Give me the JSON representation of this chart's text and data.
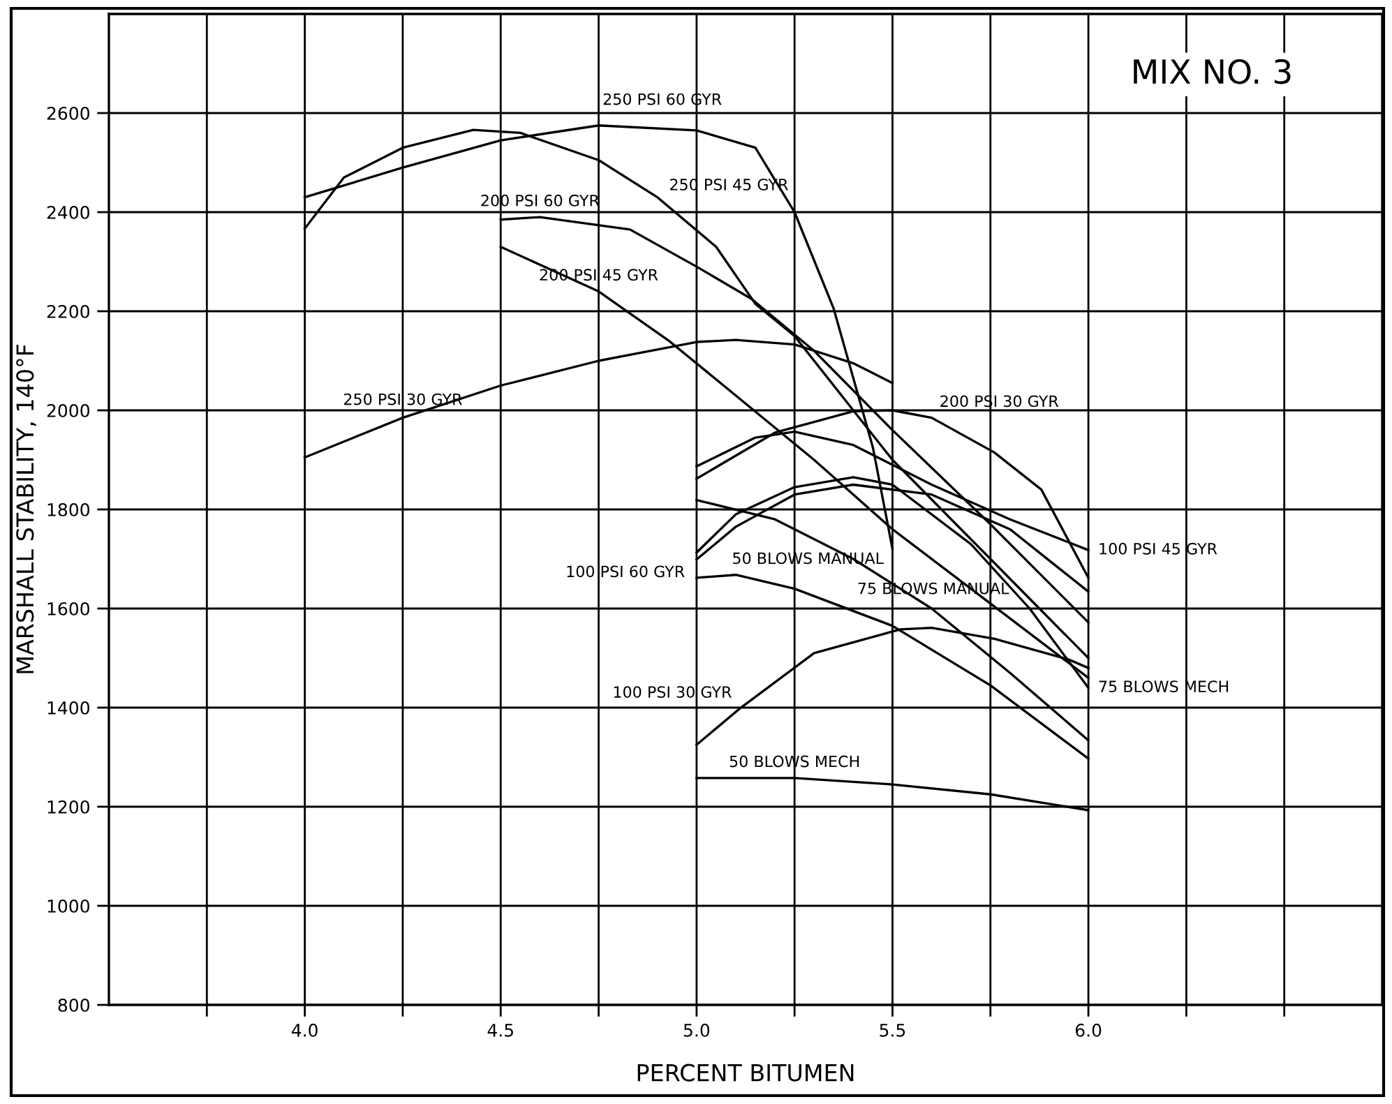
{
  "chart_data": {
    "type": "line",
    "title": "MIX NO. 3",
    "xlabel": "PERCENT BITUMEN",
    "ylabel": "MARSHALL STABILITY, 140°F",
    "xlim": [
      3.5,
      6.75
    ],
    "ylim": [
      800,
      2800
    ],
    "xticks": [
      {
        "value": 3.75,
        "label": null
      },
      {
        "value": 4.0,
        "label": "4.0"
      },
      {
        "value": 4.25,
        "label": null
      },
      {
        "value": 4.5,
        "label": "4.5"
      },
      {
        "value": 4.75,
        "label": null
      },
      {
        "value": 5.0,
        "label": "5.0"
      },
      {
        "value": 5.25,
        "label": null
      },
      {
        "value": 5.5,
        "label": "5.5"
      },
      {
        "value": 5.75,
        "label": null
      },
      {
        "value": 6.0,
        "label": "6.0"
      },
      {
        "value": 6.25,
        "label": null
      },
      {
        "value": 6.5,
        "label": null
      }
    ],
    "yticks": [
      800,
      1000,
      1200,
      1400,
      1600,
      1800,
      2000,
      2200,
      2400,
      2600
    ],
    "grid": true,
    "marker": "none",
    "line_style": "solid",
    "series": [
      {
        "color": "#000000",
        "x": [
          4.0,
          4.25,
          4.5,
          4.75,
          5.0,
          5.15,
          5.25,
          5.35,
          5.45,
          5.5
        ],
        "values": [
          2430,
          2490,
          2545,
          2575,
          2565,
          2530,
          2400,
          2205,
          1925,
          1720
        ]
      },
      {
        "color": "#000000",
        "x": [
          4.0,
          4.1,
          4.25,
          4.43,
          4.55,
          4.75,
          4.9,
          5.05,
          5.15,
          5.25,
          5.5,
          5.75,
          6.0
        ],
        "values": [
          2367,
          2470,
          2530,
          2566,
          2560,
          2505,
          2430,
          2330,
          2215,
          2150,
          1900,
          1700,
          1500
        ]
      },
      {
        "color": "#000000",
        "x": [
          4.5,
          4.6,
          4.83,
          5.0,
          5.14,
          5.3,
          5.5,
          5.75,
          6.0
        ],
        "values": [
          2385,
          2390,
          2365,
          2290,
          2225,
          2120,
          1960,
          1770,
          1572
        ]
      },
      {
        "color": "#000000",
        "x": [
          4.5,
          4.75,
          4.93,
          5.1,
          5.3,
          5.5,
          5.75,
          6.0
        ],
        "values": [
          2330,
          2240,
          2140,
          2030,
          1900,
          1760,
          1610,
          1460
        ]
      },
      {
        "color": "#000000",
        "x": [
          4.0,
          4.25,
          4.5,
          4.75,
          5.0,
          5.1,
          5.25,
          5.4,
          5.5
        ],
        "values": [
          1905,
          1985,
          2050,
          2100,
          2138,
          2142,
          2133,
          2095,
          2055
        ]
      },
      {
        "color": "#000000",
        "x": [
          5.0,
          5.2,
          5.4,
          5.5,
          5.6,
          5.76,
          5.88,
          6.0
        ],
        "values": [
          1862,
          1955,
          1998,
          2000,
          1985,
          1915,
          1840,
          1662
        ]
      },
      {
        "color": "#000000",
        "x": [
          5.0,
          5.15,
          5.25,
          5.4,
          5.6,
          5.8,
          6.0
        ],
        "values": [
          1887,
          1945,
          1957,
          1930,
          1850,
          1780,
          1718
        ]
      },
      {
        "color": "#000000",
        "x": [
          5.0,
          5.1,
          5.25,
          5.4,
          5.6,
          5.8,
          6.0
        ],
        "values": [
          1699,
          1765,
          1830,
          1850,
          1830,
          1760,
          1634
        ]
      },
      {
        "color": "#000000",
        "x": [
          5.0,
          5.1,
          5.25,
          5.4,
          5.5,
          5.7,
          5.85,
          6.0
        ],
        "values": [
          1713,
          1790,
          1845,
          1865,
          1850,
          1730,
          1600,
          1440
        ]
      },
      {
        "color": "#000000",
        "x": [
          5.0,
          5.2,
          5.4,
          5.6,
          5.8,
          6.0
        ],
        "values": [
          1819,
          1780,
          1700,
          1600,
          1470,
          1334
        ]
      },
      {
        "color": "#000000",
        "x": [
          5.0,
          5.1,
          5.25,
          5.5,
          5.75,
          6.0
        ],
        "values": [
          1662,
          1668,
          1640,
          1565,
          1445,
          1297
        ]
      },
      {
        "color": "#000000",
        "x": [
          5.0,
          5.11,
          5.3,
          5.52,
          5.6,
          5.76,
          5.95,
          6.0
        ],
        "values": [
          1325,
          1398,
          1510,
          1558,
          1561,
          1539,
          1497,
          1480
        ]
      },
      {
        "color": "#000000",
        "x": [
          5.0,
          5.25,
          5.5,
          5.75,
          6.0
        ],
        "values": [
          1258,
          1258,
          1245,
          1225,
          1193
        ]
      }
    ],
    "annotations": [
      {
        "text": "250 PSI 60 GYR",
        "x": 4.75,
        "y": 2575
      },
      {
        "text": "250 PSI 45 GYR",
        "x": 4.9,
        "y": 2430
      },
      {
        "text": "200 PSI 60 GYR",
        "x": 4.6,
        "y": 2390
      },
      {
        "text": "200 PSI 45 GYR",
        "x": 4.75,
        "y": 2240
      },
      {
        "text": "250 PSI 30 GYR",
        "x": 4.25,
        "y": 1985
      },
      {
        "text": "200 PSI 30 GYR",
        "x": 5.6,
        "y": 1985
      },
      {
        "text": "100 PSI 60 GYR",
        "x": 5.0,
        "y": 1699
      },
      {
        "text": "100 PSI 45 GYR",
        "x": 6.0,
        "y": 1718
      },
      {
        "text": "75 BLOWS MANUAL",
        "x": 5.4,
        "y": 1700
      },
      {
        "text": "50 BLOWS MANUAL",
        "x": 5.1,
        "y": 1668
      },
      {
        "text": "100 PSI 30 GYR",
        "x": 5.11,
        "y": 1398
      },
      {
        "text": "75 BLOWS MECH",
        "x": 6.0,
        "y": 1440
      },
      {
        "text": "50 BLOWS MECH",
        "x": 5.25,
        "y": 1258
      }
    ]
  }
}
